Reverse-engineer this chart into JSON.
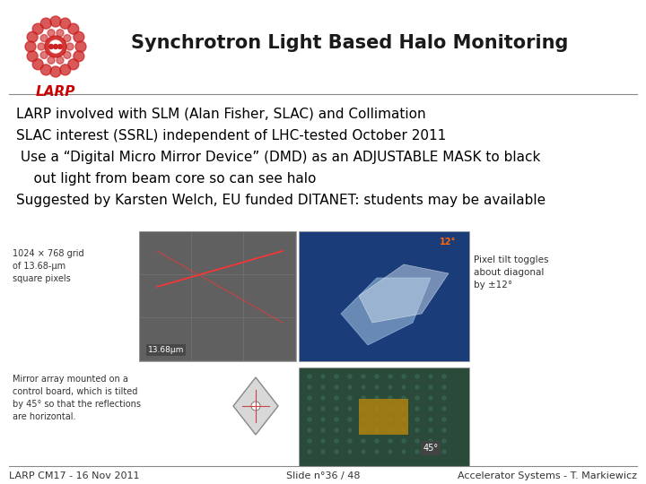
{
  "title": "Synchrotron Light Based Halo Monitoring",
  "bullet1": "LARP involved with SLM (Alan Fisher, SLAC) and Collimation",
  "bullet2": "SLAC interest (SSRL) independent of LHC-tested October 2011",
  "bullet3a": " Use a “Digital Micro Mirror Device” (DMD) as an ADJUSTABLE MASK to black",
  "bullet3b": "    out light from beam core so can see halo",
  "bullet4": "Suggested by Karsten Welch, EU funded DITANET: students may be available",
  "footer_left": "LARP CM17 - 16 Nov 2011",
  "footer_center": "Slide n°36 / 48",
  "footer_right": "Accelerator Systems - T. Markiewicz",
  "bg_color": "#ffffff",
  "title_color": "#1a1a1a",
  "title_fontsize": 15,
  "bullet_fontsize": 11,
  "footer_fontsize": 8,
  "larp_text_color": "#cc0000",
  "text_label1": "1024 × 768 grid",
  "text_label2": "of 13.68-μm",
  "text_label3": "square pixels",
  "text_label4": "13.68μm",
  "text_label5": "Pixel tilt toggles",
  "text_label6": "about diagonal",
  "text_label7": "by ±12°",
  "text_label8": "Mirror array mounted on a",
  "text_label9": "control board, which is tilted",
  "text_label10": "by 45° so that the reflections",
  "text_label11": "are horizontal.",
  "text_label12": "45°"
}
